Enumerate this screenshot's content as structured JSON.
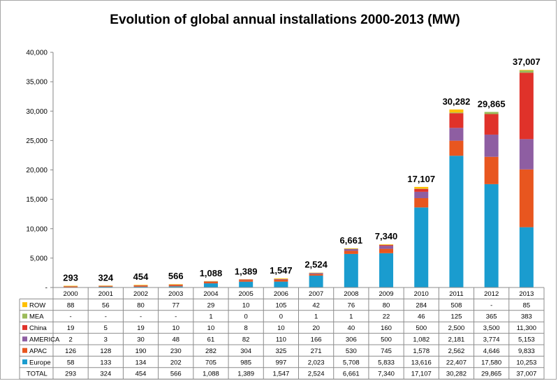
{
  "chart_data": {
    "type": "bar",
    "stacked": true,
    "title": "Evolution of global annual installations 2000-2013 (MW)",
    "ylim": [
      0,
      40000
    ],
    "yticks": [
      0,
      5000,
      10000,
      15000,
      20000,
      25000,
      30000,
      35000,
      40000
    ],
    "ytick_labels": [
      "-",
      "5,000",
      "10,000",
      "15,000",
      "20,000",
      "25,000",
      "30,000",
      "35,000",
      "40,000"
    ],
    "grid": false,
    "legend": "data-table-left",
    "categories": [
      "2000",
      "2001",
      "2002",
      "2003",
      "2004",
      "2005",
      "2006",
      "2007",
      "2008",
      "2009",
      "2010",
      "2011",
      "2012",
      "2013"
    ],
    "series": [
      {
        "name": "ROW",
        "color": "#ffc000",
        "values": [
          88,
          56,
          80,
          77,
          29,
          10,
          105,
          42,
          76,
          80,
          284,
          508,
          0,
          85
        ],
        "labels": [
          "88",
          "56",
          "80",
          "77",
          "29",
          "10",
          "105",
          "42",
          "76",
          "80",
          "284",
          "508",
          "-",
          "85"
        ]
      },
      {
        "name": "MEA",
        "color": "#9bbb59",
        "values": [
          0,
          0,
          0,
          0,
          1,
          0,
          0,
          1,
          1,
          22,
          46,
          125,
          365,
          383
        ],
        "labels": [
          "-",
          "-",
          "-",
          "-",
          "1",
          "0",
          "0",
          "1",
          "1",
          "22",
          "46",
          "125",
          "365",
          "383"
        ]
      },
      {
        "name": "China",
        "color": "#e0322a",
        "values": [
          19,
          5,
          19,
          10,
          10,
          8,
          10,
          20,
          40,
          160,
          500,
          2500,
          3500,
          11300
        ],
        "labels": [
          "19",
          "5",
          "19",
          "10",
          "10",
          "8",
          "10",
          "20",
          "40",
          "160",
          "500",
          "2,500",
          "3,500",
          "11,300"
        ]
      },
      {
        "name": "AMERICA",
        "color": "#8e5ea2",
        "values": [
          2,
          3,
          30,
          48,
          61,
          82,
          110,
          166,
          306,
          500,
          1082,
          2181,
          3774,
          5153
        ],
        "labels": [
          "2",
          "3",
          "30",
          "48",
          "61",
          "82",
          "110",
          "166",
          "306",
          "500",
          "1,082",
          "2,181",
          "3,774",
          "5,153"
        ]
      },
      {
        "name": "APAC",
        "color": "#e8561f",
        "values": [
          126,
          128,
          190,
          230,
          282,
          304,
          325,
          271,
          530,
          745,
          1578,
          2562,
          4646,
          9833
        ],
        "labels": [
          "126",
          "128",
          "190",
          "230",
          "282",
          "304",
          "325",
          "271",
          "530",
          "745",
          "1,578",
          "2,562",
          "4,646",
          "9,833"
        ]
      },
      {
        "name": "Europe",
        "color": "#1a9ccf",
        "values": [
          58,
          133,
          134,
          202,
          705,
          985,
          997,
          2023,
          5708,
          5833,
          13616,
          22407,
          17580,
          10253
        ],
        "labels": [
          "58",
          "133",
          "134",
          "202",
          "705",
          "985",
          "997",
          "2,023",
          "5,708",
          "5,833",
          "13,616",
          "22,407",
          "17,580",
          "10,253"
        ]
      }
    ],
    "stack_order": [
      "Europe",
      "APAC",
      "AMERICA",
      "China",
      "MEA",
      "ROW"
    ],
    "totals": [
      293,
      324,
      454,
      566,
      1088,
      1389,
      1547,
      2524,
      6661,
      7340,
      17107,
      30282,
      29865,
      37007
    ],
    "total_labels": [
      "293",
      "324",
      "454",
      "566",
      "1,088",
      "1,389",
      "1,547",
      "2,524",
      "6,661",
      "7,340",
      "17,107",
      "30,282",
      "29,865",
      "37,007"
    ],
    "total_row_name": "TOTAL"
  }
}
